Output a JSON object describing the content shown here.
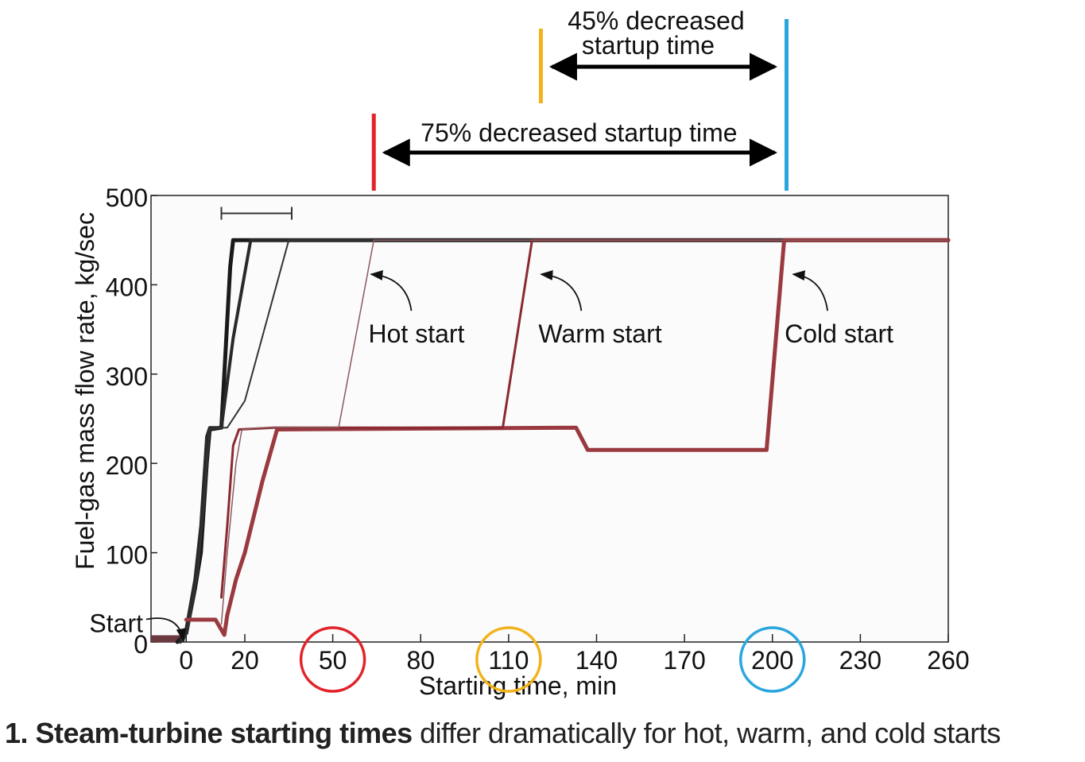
{
  "chart_data": {
    "type": "line",
    "xlabel": "Starting time, min",
    "ylabel": "Fuel-gas mass flow rate, kg/sec",
    "xlim": [
      -12,
      260
    ],
    "ylim": [
      0,
      500
    ],
    "x_ticks": [
      0,
      20,
      50,
      80,
      110,
      140,
      170,
      200,
      230,
      260
    ],
    "y_ticks": [
      0,
      100,
      200,
      300,
      400,
      500
    ],
    "circled_ticks": [
      {
        "value": 50,
        "color": "#e0242a"
      },
      {
        "value": 110,
        "color": "#f2b21b"
      },
      {
        "value": 200,
        "color": "#2aa6de"
      }
    ],
    "series": [
      {
        "color": "#1a1a1a",
        "width": 5,
        "points": [
          [
            -3,
            0
          ],
          [
            0,
            10
          ],
          [
            3,
            60
          ],
          [
            5,
            100
          ],
          [
            7,
            200
          ],
          [
            8,
            238
          ],
          [
            12,
            240
          ],
          [
            15,
            420
          ],
          [
            16,
            450
          ],
          [
            260,
            450
          ]
        ]
      },
      {
        "color": "#2a2a2a",
        "width": 4,
        "points": [
          [
            -2,
            0
          ],
          [
            0,
            15
          ],
          [
            3,
            70
          ],
          [
            5,
            130
          ],
          [
            7,
            230
          ],
          [
            8,
            240
          ],
          [
            12,
            240
          ],
          [
            16,
            340
          ],
          [
            22,
            450
          ],
          [
            260,
            450
          ]
        ]
      },
      {
        "color": "#333333",
        "width": 2,
        "points": [
          [
            -1,
            0
          ],
          [
            1,
            20
          ],
          [
            4,
            80
          ],
          [
            6,
            150
          ],
          [
            8,
            238
          ],
          [
            11,
            240
          ],
          [
            14,
            240
          ],
          [
            20,
            270
          ],
          [
            35,
            450
          ],
          [
            260,
            450
          ]
        ]
      },
      {
        "color": "#9a3a40",
        "width": 5,
        "points": [
          [
            0,
            25
          ],
          [
            10,
            25
          ],
          [
            13,
            8
          ],
          [
            14,
            30
          ],
          [
            17,
            70
          ],
          [
            20,
            100
          ],
          [
            26,
            180
          ],
          [
            31,
            238
          ],
          [
            133,
            240
          ],
          [
            137,
            215
          ],
          [
            198,
            215
          ],
          [
            204,
            450
          ],
          [
            260,
            450
          ]
        ]
      },
      {
        "color": "#8a2a30",
        "width": 3,
        "points": [
          [
            12,
            50
          ],
          [
            14,
            130
          ],
          [
            16,
            220
          ],
          [
            18,
            238
          ],
          [
            30,
            240
          ],
          [
            108,
            240
          ],
          [
            118,
            450
          ],
          [
            260,
            450
          ]
        ]
      },
      {
        "color": "#8a5a5e",
        "width": 1.5,
        "points": [
          [
            12,
            20
          ],
          [
            14,
            100
          ],
          [
            17,
            200
          ],
          [
            19,
            238
          ],
          [
            26,
            240
          ],
          [
            52,
            240
          ],
          [
            64,
            450
          ],
          [
            260,
            450
          ]
        ]
      }
    ],
    "start_marker": {
      "x_start": -12,
      "x_end": -1,
      "y": 0,
      "color": "#6a3a40"
    },
    "range_marker": {
      "x_start": 12,
      "x_end": 36,
      "y": 480
    },
    "annotations": [
      {
        "text": "Start",
        "x": -12,
        "y": 20,
        "arrow_to": [
          -1,
          2
        ]
      },
      {
        "text": "Hot start",
        "x": 60,
        "y": 346,
        "arrow_to": [
          62,
          410
        ]
      },
      {
        "text": "Warm start",
        "x": 118,
        "y": 346,
        "arrow_to": [
          120,
          410
        ]
      },
      {
        "text": "Cold start",
        "x": 202,
        "y": 346,
        "arrow_to": [
          206,
          410
        ]
      }
    ],
    "comparisons": [
      {
        "label": "75% decreased startup time",
        "x_start": 64,
        "x_end": 204,
        "line_color": "#e0242a"
      },
      {
        "label_line1": "45% decreased",
        "label_line2": "startup time",
        "x_start": 121,
        "x_end": 204,
        "line_color": "#f2b21b"
      }
    ],
    "reference_line_color": "#2aa6de"
  },
  "caption": {
    "number": "1.",
    "bold": "Steam-turbine starting times",
    "rest": " differ dramatically for hot, warm, and cold starts"
  }
}
